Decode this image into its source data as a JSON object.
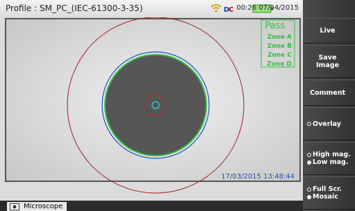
{
  "header": {
    "profile": "Profile : SM_PC_(IEC-61300-3-35)",
    "clock": "00:26 07/04/2015"
  },
  "image": {
    "result": "Pass",
    "zones": [
      "Zone A",
      "Zone B",
      "Zone C",
      "Zone D"
    ],
    "timestamp": "17/03/2015 13:48:44"
  },
  "sidebar": {
    "buttons": [
      [
        "Live"
      ],
      [
        "Save",
        "Image"
      ],
      [
        "Comment"
      ],
      [
        "Overlay"
      ],
      [
        "High mag.",
        "Low mag."
      ],
      [
        "Full Scr.",
        "Mosaic"
      ]
    ]
  },
  "tab": "Microscope"
}
